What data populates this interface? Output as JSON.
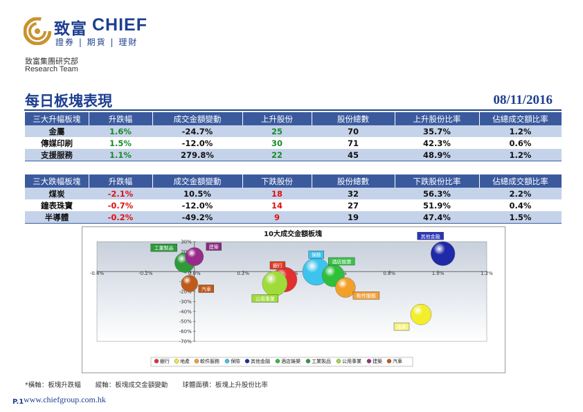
{
  "brand": {
    "name_cn": "致富",
    "name_en": "CHIEF",
    "tagline": "證券 | 期貨 | 理財",
    "dept_cn": "致富集團研究部",
    "dept_en": "Research Team"
  },
  "page": {
    "title": "每日板塊表現",
    "date": "08/11/2016",
    "page_number": "P.1",
    "website": "www.chiefgroup.com.hk"
  },
  "gainers": {
    "headers": [
      "三大升幅板塊",
      "升跌幅",
      "成交金額變動",
      "上升股份",
      "股份總數",
      "上升股份比率",
      "佔總成交額比率"
    ],
    "rows": [
      [
        "金屬",
        "1.6%",
        "-24.7%",
        "25",
        "70",
        "35.7%",
        "1.2%"
      ],
      [
        "傳媒印刷",
        "1.5%",
        "-12.0%",
        "30",
        "71",
        "42.3%",
        "0.6%"
      ],
      [
        "支援服務",
        "1.1%",
        "279.8%",
        "22",
        "45",
        "48.9%",
        "1.2%"
      ]
    ]
  },
  "losers": {
    "headers": [
      "三大跌幅板塊",
      "升跌幅",
      "成交金額變動",
      "下跌股份",
      "股份總數",
      "下跌股份比率",
      "佔總成交額比率"
    ],
    "rows": [
      [
        "煤炭",
        "-2.1%",
        "10.5%",
        "18",
        "32",
        "56.3%",
        "2.2%"
      ],
      [
        "鐘表珠寶",
        "-0.7%",
        "-12.0%",
        "14",
        "27",
        "51.9%",
        "0.4%"
      ],
      [
        "半導體",
        "-0.2%",
        "-49.2%",
        "9",
        "19",
        "47.4%",
        "1.5%"
      ]
    ]
  },
  "chart_data": {
    "type": "scatter",
    "title": "10大成交金額板塊",
    "x_ticks": [
      "-0.4%",
      "-0.2%",
      "0.0%",
      "0.2%",
      "0.4%",
      "0.6%",
      "0.8%",
      "1.0%",
      "1.2%"
    ],
    "y_ticks": [
      "30%",
      "20%",
      "10%",
      "0%",
      "-10%",
      "-20%",
      "-30%",
      "-40%",
      "-50%",
      "-60%",
      "-70%"
    ],
    "xlim": [
      -0.4,
      1.2
    ],
    "ylim": [
      -70,
      30
    ],
    "series": [
      {
        "name": "銀行",
        "x": 0.37,
        "y": -8,
        "size": 1.0,
        "color": "#e53030",
        "label_bg": "#e03a1e"
      },
      {
        "name": "地產",
        "x": 0.93,
        "y": -43,
        "size": 0.75,
        "color": "#f3ee2a",
        "label_bg": "#f6f27a"
      },
      {
        "name": "軟件服務",
        "x": 0.62,
        "y": -16,
        "size": 0.7,
        "color": "#f2a028",
        "label_bg": "#f4a03a"
      },
      {
        "name": "保險",
        "x": 0.5,
        "y": 0,
        "size": 1.15,
        "color": "#3cc3ee",
        "label_bg": "#3cc3ee"
      },
      {
        "name": "其他金融",
        "x": 1.02,
        "y": 18,
        "size": 0.95,
        "color": "#1f2aa8",
        "label_bg": "#2a35b8"
      },
      {
        "name": "酒店娛樂",
        "x": 0.57,
        "y": -4,
        "size": 0.85,
        "color": "#2fbf3a",
        "label_bg": "#3cc14a"
      },
      {
        "name": "工業製品",
        "x": -0.04,
        "y": 9,
        "size": 0.7,
        "color": "#2e9a3a",
        "label_bg": "#2e9a3a"
      },
      {
        "name": "公用事業",
        "x": 0.33,
        "y": -12,
        "size": 1.0,
        "color": "#9fdc3a",
        "label_bg": "#9fdc3a"
      },
      {
        "name": "建築",
        "x": 0.0,
        "y": 15,
        "size": 0.6,
        "color": "#9a2a8a",
        "label_bg": "#8a2a80"
      },
      {
        "name": "汽車",
        "x": -0.02,
        "y": -12,
        "size": 0.5,
        "color": "#c05a1a",
        "label_bg": "#c05a1a"
      }
    ]
  },
  "footnote": {
    "x_axis": "*橫軸：板塊升跌幅",
    "y_axis": "縱軸：板塊成交金額變動",
    "bubble": "球體面積：板塊上升股份比率"
  }
}
